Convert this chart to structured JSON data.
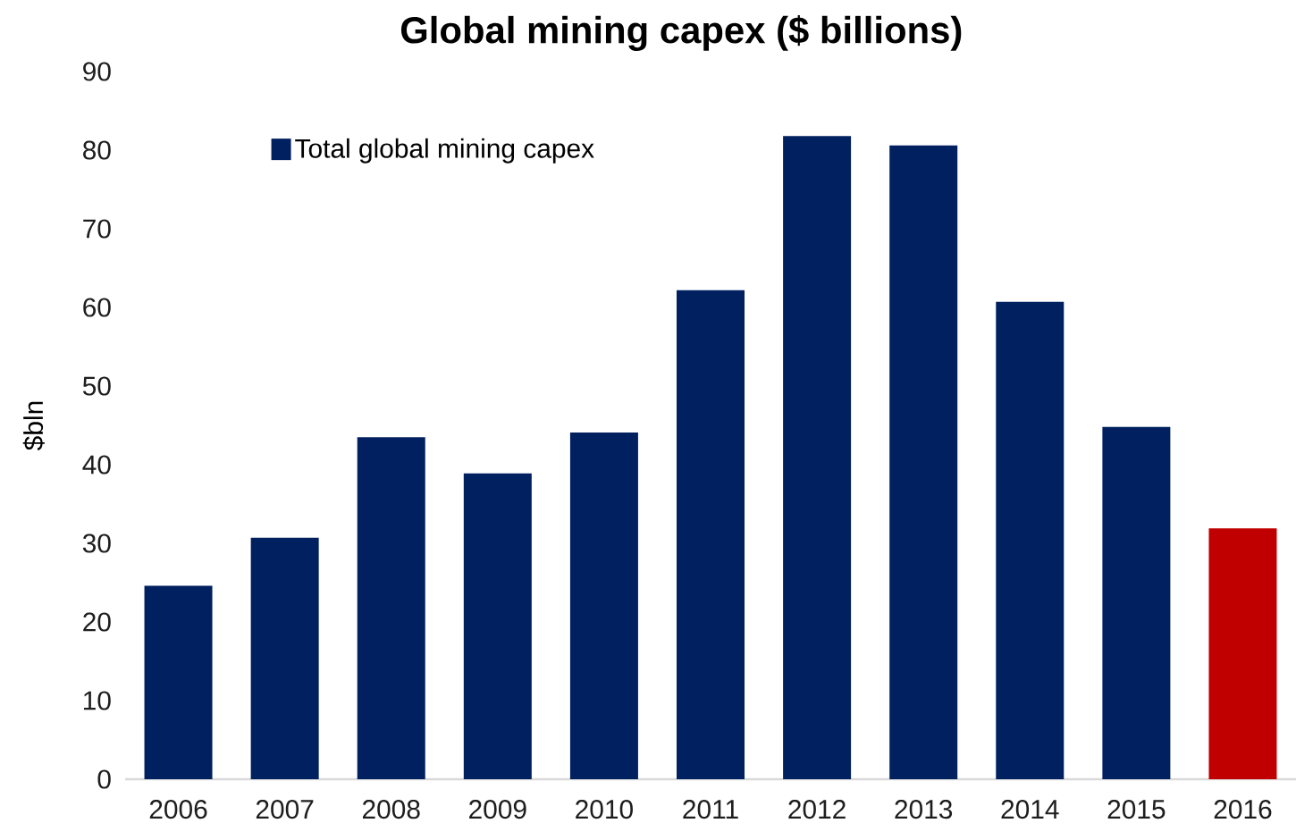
{
  "chart_data": {
    "type": "bar",
    "title": "Global mining capex ($ billions)",
    "ylabel": "$bln",
    "categories": [
      "2006",
      "2007",
      "2008",
      "2009",
      "2010",
      "2011",
      "2012",
      "2013",
      "2014",
      "2015",
      "2016"
    ],
    "series": [
      {
        "name": "Total global mining capex",
        "color": "#002060",
        "values": [
          24.6,
          30.7,
          43.5,
          38.9,
          44.1,
          62.2,
          81.8,
          80.6,
          60.7,
          44.8,
          31.9
        ],
        "colors": [
          "#002060",
          "#002060",
          "#002060",
          "#002060",
          "#002060",
          "#002060",
          "#002060",
          "#002060",
          "#002060",
          "#002060",
          "#c00000"
        ]
      }
    ],
    "ylim": [
      0,
      90
    ],
    "yticks": [
      0,
      10,
      20,
      30,
      40,
      50,
      60,
      70,
      80,
      90
    ],
    "grid": false,
    "legend": "top left"
  }
}
